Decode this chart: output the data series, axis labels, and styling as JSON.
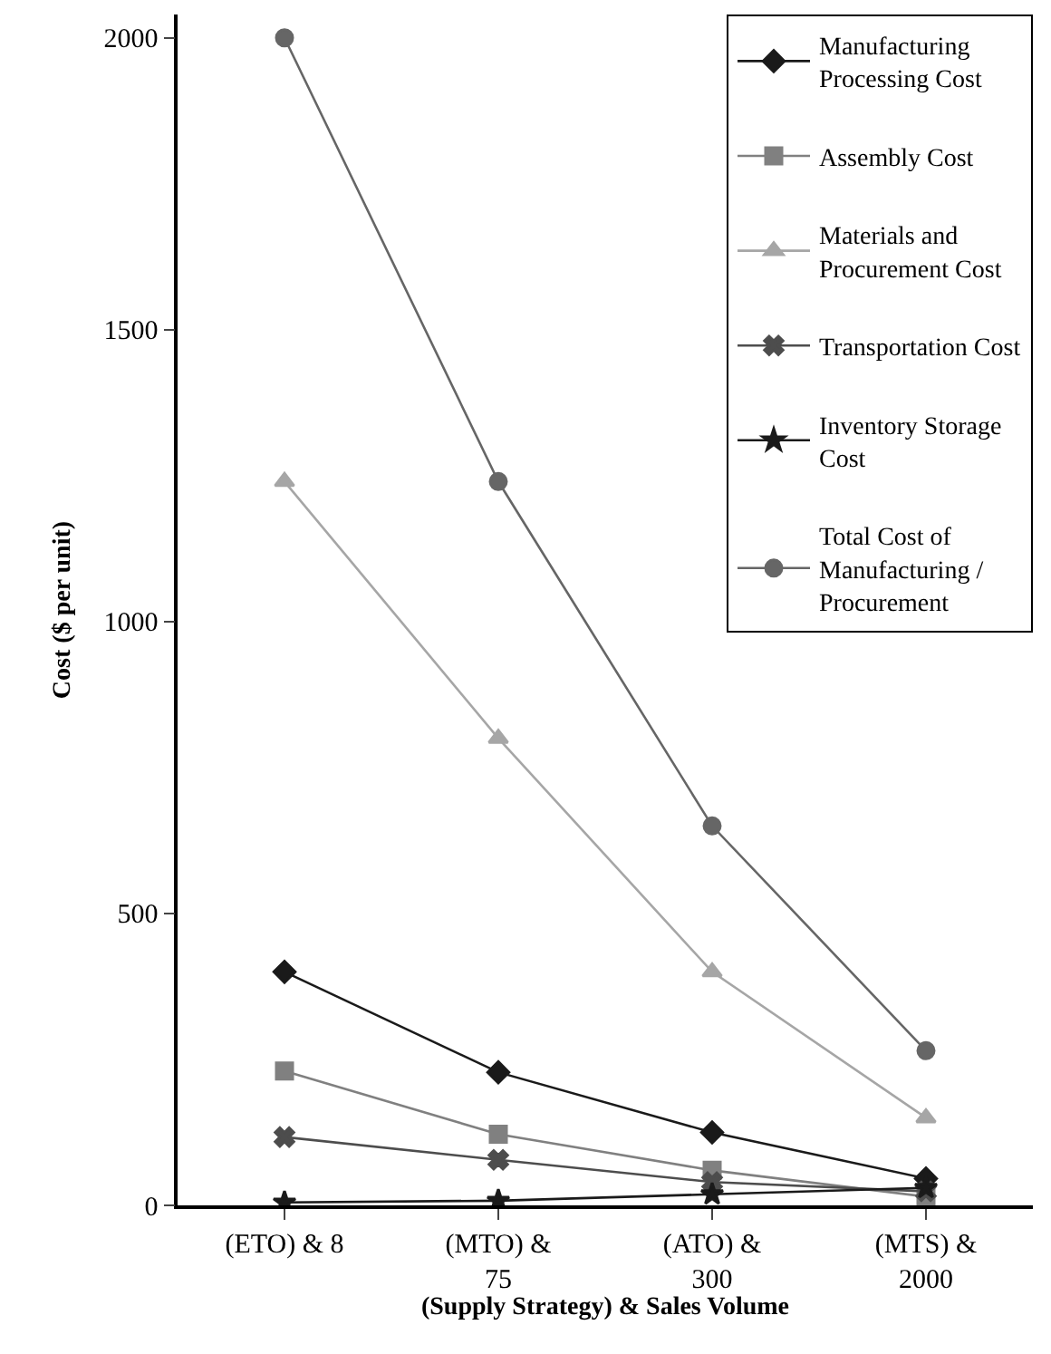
{
  "chart_data": {
    "type": "line",
    "xlabel": "(Supply Strategy) & Sales Volume",
    "ylabel": "Cost ($ per unit)",
    "categories": [
      "(ETO) & 8",
      "(MTO) & 75",
      "(ATO) & 300",
      "(MTS) & 2000"
    ],
    "ylim": [
      0,
      2040
    ],
    "yticks": [
      0,
      500,
      1000,
      1500,
      2000
    ],
    "legend": "top right",
    "line_style": "solid",
    "series": [
      {
        "name": "Manufacturing Processing Cost",
        "color": "#1a1a1a",
        "marker": "diamond",
        "values": [
          400,
          228,
          125,
          46
        ]
      },
      {
        "name": "Assembly Cost",
        "color": "#808080",
        "marker": "square",
        "values": [
          230,
          122,
          60,
          15
        ]
      },
      {
        "name": "Materials and Procurement Cost",
        "color": "#a6a6a6",
        "marker": "triangle",
        "values": [
          1240,
          800,
          400,
          150
        ]
      },
      {
        "name": "Transportation Cost",
        "color": "#4d4d4d",
        "marker": "cross",
        "values": [
          117,
          78,
          40,
          24
        ]
      },
      {
        "name": "Inventory Storage Cost",
        "color": "#1a1a1a",
        "marker": "star",
        "values": [
          5,
          8,
          19,
          30
        ]
      },
      {
        "name": "Total Cost of Manufacturing / Procurement",
        "color": "#666666",
        "marker": "circle",
        "values": [
          2000,
          1240,
          650,
          265
        ]
      }
    ]
  }
}
